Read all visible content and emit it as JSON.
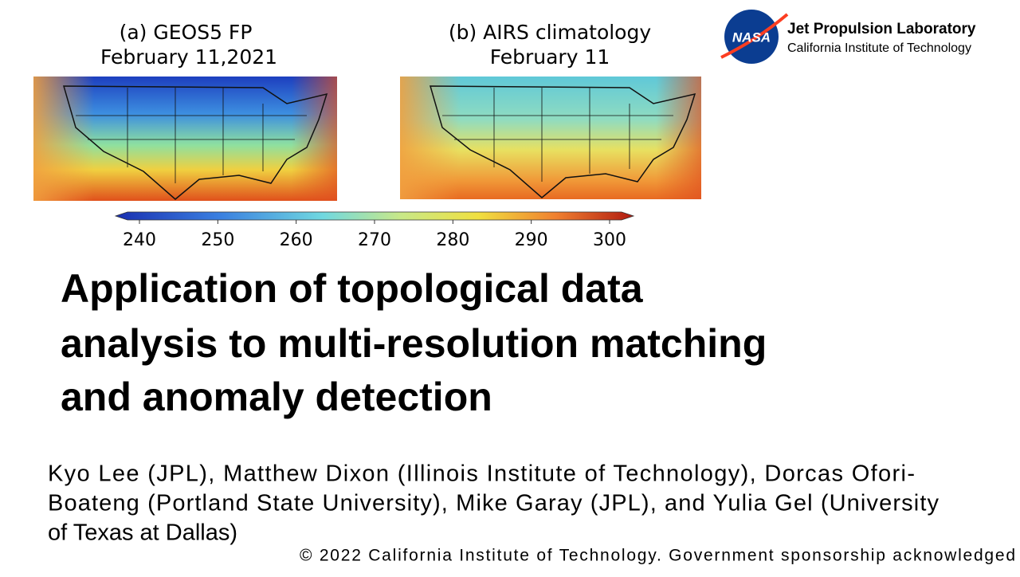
{
  "panels": [
    {
      "title": "(a) GEOS5 FP",
      "date": "February 11,2021"
    },
    {
      "title": "(b) AIRS climatology",
      "date": "February 11"
    }
  ],
  "colorbar": {
    "ticks": [
      240,
      250,
      260,
      270,
      280,
      290,
      300
    ]
  },
  "logo": {
    "badge": "NASA",
    "name": "Jet Propulsion Laboratory",
    "institution": "California Institute of Technology"
  },
  "title_lines": [
    "Application of topological data",
    "analysis to multi-resolution matching",
    "and anomaly detection"
  ],
  "author_lines": [
    "Kyo Lee (JPL), Matthew Dixon (Illinois Institute of Technology), Dorcas Ofori-",
    "Boateng (Portland State University), Mike Garay (JPL), and Yulia Gel (University",
    "of Texas at Dallas)"
  ],
  "footer": "© 2022 California Institute of Technology. Government sponsorship acknowledged"
}
